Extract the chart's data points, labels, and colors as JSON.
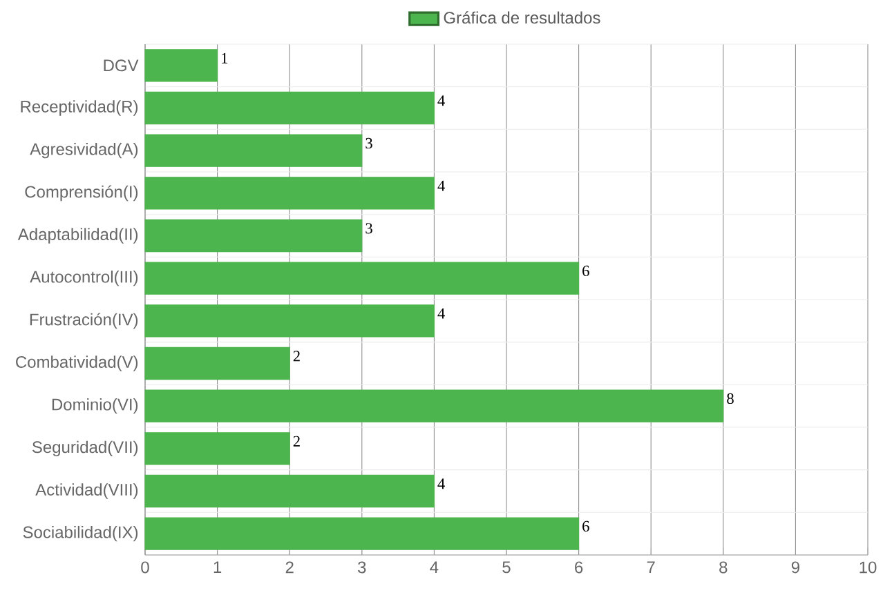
{
  "chart_data": {
    "type": "bar",
    "orientation": "horizontal",
    "categories": [
      "DGV",
      "Receptividad(R)",
      "Agresividad(A)",
      "Comprensión(I)",
      "Adaptabilidad(II)",
      "Autocontrol(III)",
      "Frustración(IV)",
      "Combatividad(V)",
      "Dominio(VI)",
      "Seguridad(VII)",
      "Actividad(VIII)",
      "Sociabilidad(IX)"
    ],
    "series": [
      {
        "name": "Gráfica de resultados",
        "color": "#4db54d",
        "values": [
          1,
          4,
          3,
          4,
          3,
          6,
          4,
          2,
          8,
          2,
          4,
          6
        ]
      }
    ],
    "xlim": [
      0,
      10
    ],
    "xticks": [
      0,
      1,
      2,
      3,
      4,
      5,
      6,
      7,
      8,
      9,
      10
    ],
    "grid": true,
    "legend": "top",
    "data_labels": true
  }
}
